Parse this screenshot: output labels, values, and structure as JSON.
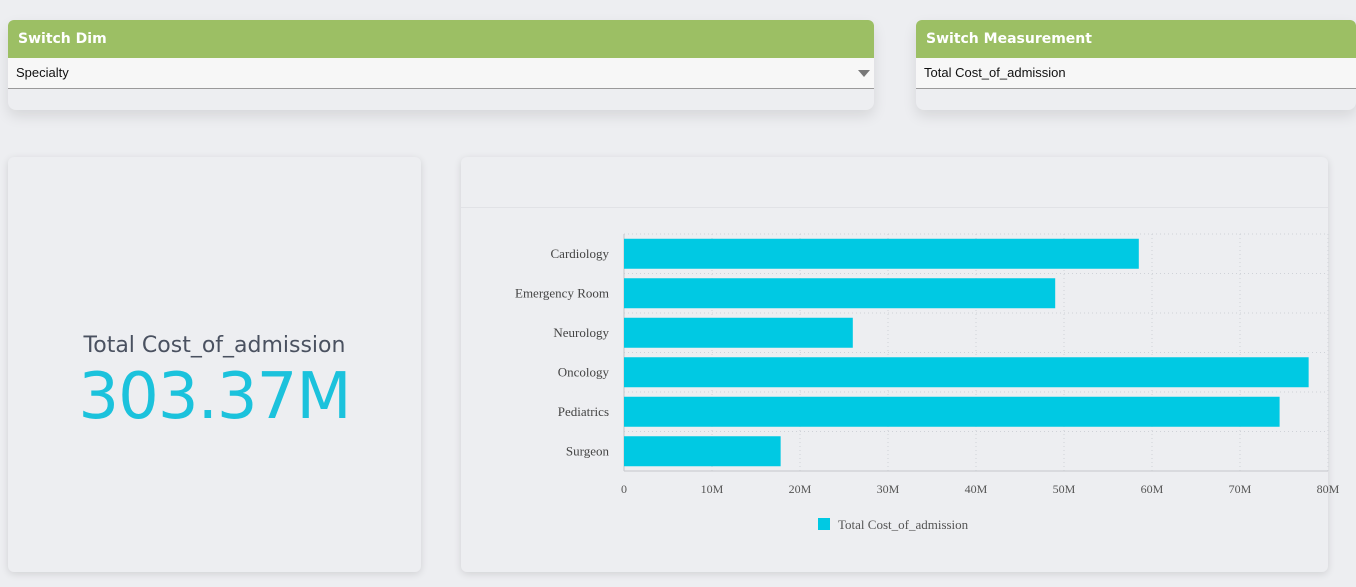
{
  "switch_dim": {
    "header": "Switch Dim",
    "selected": "Specialty"
  },
  "switch_measurement": {
    "header": "Switch Measurement",
    "selected": "Total Cost_of_admission"
  },
  "kpi": {
    "label": "Total Cost_of_admission",
    "value": "303.37M"
  },
  "colors": {
    "accent": "#9cbf64",
    "bar": "#00c9e3",
    "kpi_value": "#1bc2dc"
  },
  "chart_data": {
    "type": "bar",
    "orientation": "horizontal",
    "categories": [
      "Cardiology",
      "Emergency Room",
      "Neurology",
      "Oncology",
      "Pediatrics",
      "Surgeon"
    ],
    "series": [
      {
        "name": "Total Cost_of_admission",
        "values": [
          58.5,
          49,
          26,
          77.8,
          74.5,
          17.8
        ]
      }
    ],
    "xticks": [
      "0",
      "10M",
      "20M",
      "30M",
      "40M",
      "50M",
      "60M",
      "70M",
      "80M"
    ],
    "xlim": [
      0,
      80
    ],
    "grid": true,
    "legend": "bottom-center"
  }
}
